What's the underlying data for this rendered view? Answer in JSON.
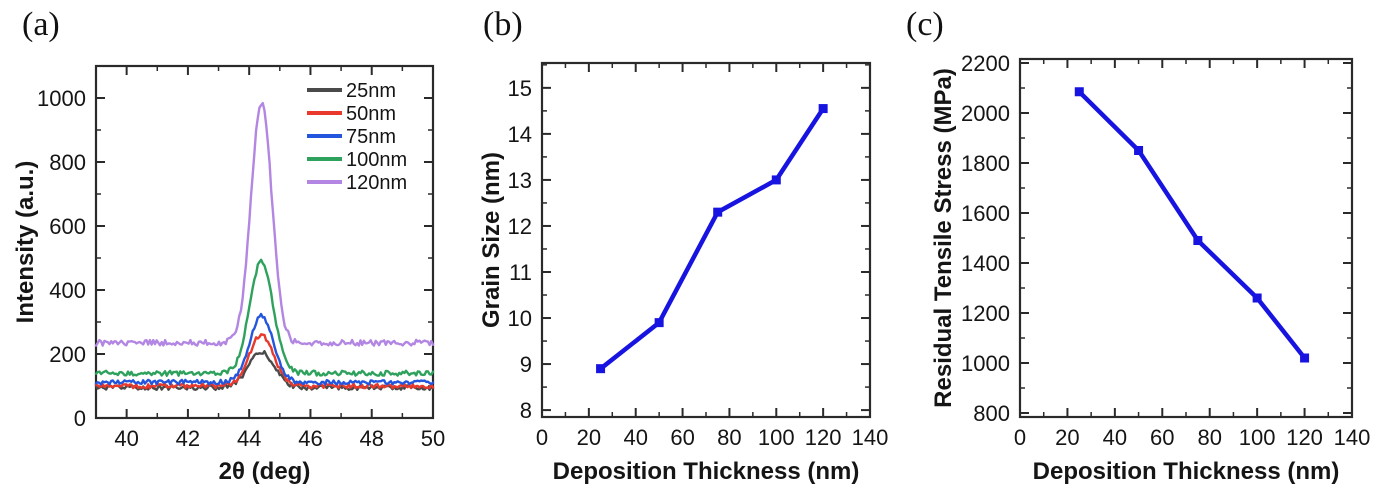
{
  "figure_description": "Three-panel materials science figure: XRD spectra, grain size and residual stress versus deposition thickness",
  "accent_colors": {
    "axis": "#2a2a2a",
    "text": "#151515",
    "data_line_blue": "#1713e0"
  },
  "chart_data": [
    {
      "type": "line",
      "subtype": "xrd-spectra",
      "panel_label": "(a)",
      "xlabel": "2θ (deg)",
      "ylabel": "Intensity (a.u.)",
      "xlim": [
        39,
        50
      ],
      "ylim": [
        0,
        1100
      ],
      "xticks": [
        40,
        42,
        44,
        46,
        48,
        50
      ],
      "yticks": [
        0,
        200,
        400,
        600,
        800,
        1000
      ],
      "x_minor_step": 1,
      "y_minor_step": 100,
      "grid": false,
      "legend_position": "top-right",
      "peak_center_deg": 44.4,
      "series": [
        {
          "name": "25nm",
          "color": "#4a4a4a",
          "baseline": 95,
          "peak_intensity": 205,
          "peak_fwhm_deg": 1.0,
          "noise_amplitude": 7
        },
        {
          "name": "50nm",
          "color": "#e8392c",
          "baseline": 100,
          "peak_intensity": 260,
          "peak_fwhm_deg": 0.95,
          "noise_amplitude": 7
        },
        {
          "name": "75nm",
          "color": "#2456dd",
          "baseline": 112,
          "peak_intensity": 320,
          "peak_fwhm_deg": 0.9,
          "noise_amplitude": 7
        },
        {
          "name": "100nm",
          "color": "#2ea25d",
          "baseline": 140,
          "peak_intensity": 490,
          "peak_fwhm_deg": 0.9,
          "noise_amplitude": 8
        },
        {
          "name": "120nm",
          "color": "#b286e2",
          "baseline": 235,
          "peak_intensity": 985,
          "peak_fwhm_deg": 0.8,
          "noise_amplitude": 9
        }
      ]
    },
    {
      "type": "line",
      "subtype": "marker-line",
      "panel_label": "(b)",
      "xlabel": "Deposition Thickness (nm)",
      "ylabel": "Grain Size (nm)",
      "xlim": [
        0,
        140
      ],
      "ylim": [
        7.85,
        15.54
      ],
      "xticks": [
        0,
        20,
        40,
        60,
        80,
        100,
        120,
        140
      ],
      "yticks": [
        8,
        9,
        10,
        11,
        12,
        13,
        14,
        15
      ],
      "x_minor_step": 10,
      "y_minor_step": 0.5,
      "grid": false,
      "legend_position": "none",
      "series": [
        {
          "name": "Grain Size",
          "color": "#1713e0",
          "marker": "square",
          "x": [
            25,
            50,
            75,
            100,
            120
          ],
          "y": [
            8.9,
            9.9,
            12.3,
            13.0,
            14.55
          ]
        }
      ]
    },
    {
      "type": "line",
      "subtype": "marker-line",
      "panel_label": "(c)",
      "xlabel": "Deposition Thickness (nm)",
      "ylabel": "Residual Tensile Stress (MPa)",
      "xlim": [
        0,
        140
      ],
      "ylim": [
        784,
        2216
      ],
      "xticks": [
        0,
        20,
        40,
        60,
        80,
        100,
        120,
        140
      ],
      "yticks": [
        800,
        1000,
        1200,
        1400,
        1600,
        1800,
        2000,
        2200
      ],
      "x_minor_step": 10,
      "y_minor_step": 100,
      "grid": false,
      "legend_position": "none",
      "series": [
        {
          "name": "Residual Tensile Stress",
          "color": "#1713e0",
          "marker": "square",
          "x": [
            25,
            50,
            75,
            100,
            120
          ],
          "y": [
            2085,
            1850,
            1490,
            1260,
            1020
          ]
        }
      ]
    }
  ]
}
